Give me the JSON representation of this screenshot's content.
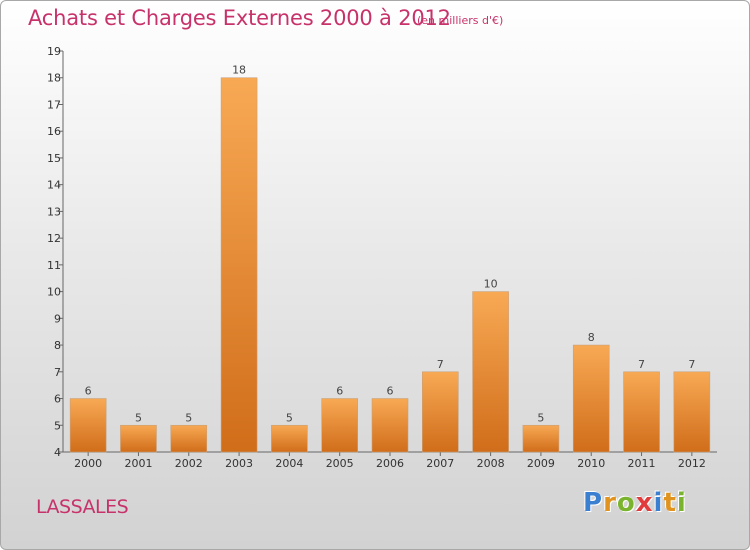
{
  "title": "Achats et Charges Externes 2000 à 2012",
  "subtitle": "(en milliers d'€)",
  "commune": "LASSALES",
  "logo": {
    "letters": [
      {
        "char": "P",
        "color": "#3a7fd0"
      },
      {
        "char": "r",
        "color": "#e0931e"
      },
      {
        "char": "o",
        "color": "#7ab32e"
      },
      {
        "char": "x",
        "color": "#e23b3b"
      },
      {
        "char": "i",
        "color": "#3a7fd0"
      },
      {
        "char": "t",
        "color": "#e0931e"
      },
      {
        "char": "i",
        "color": "#7ab32e"
      }
    ]
  },
  "colors": {
    "bar_light": "#f8a954",
    "bar_dark": "#d06d1a",
    "accent": "#c8326a"
  },
  "chart_data": {
    "type": "bar",
    "categories": [
      "2000",
      "2001",
      "2002",
      "2003",
      "2004",
      "2005",
      "2006",
      "2007",
      "2008",
      "2009",
      "2010",
      "2011",
      "2012"
    ],
    "values": [
      6,
      5,
      5,
      18,
      5,
      6,
      6,
      7,
      10,
      5,
      8,
      7,
      7
    ],
    "ylim": [
      4,
      19
    ],
    "yticks": [
      4,
      5,
      6,
      7,
      8,
      9,
      10,
      11,
      12,
      13,
      14,
      15,
      16,
      17,
      18,
      19
    ],
    "grid": false,
    "legend": "none"
  }
}
